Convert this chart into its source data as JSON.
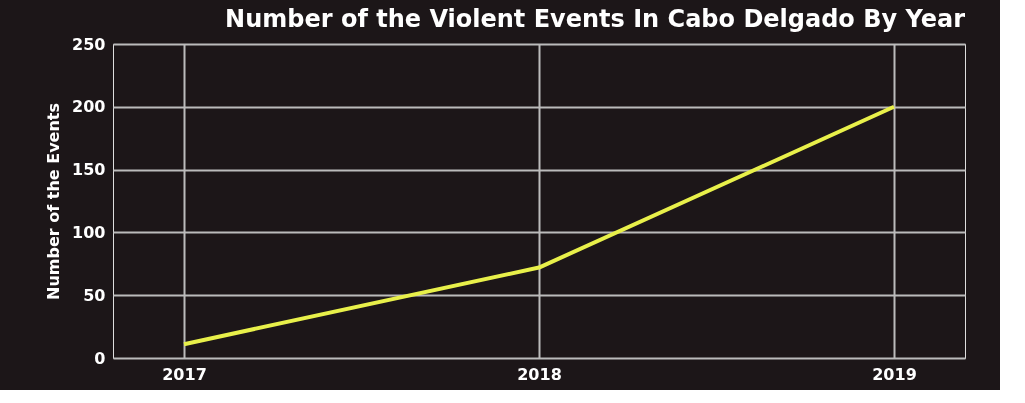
{
  "chart_data": {
    "type": "line",
    "title": "Number of the Violent Events In Cabo Delgado By Year",
    "ylabel": "Number of the Events",
    "x": [
      2017,
      2018,
      2019
    ],
    "series": [
      {
        "color": "#e8f04a",
        "values": [
          11,
          72,
          200
        ]
      }
    ],
    "xlim": [
      2016.8,
      2019.2
    ],
    "xticks": [
      2017,
      2018,
      2019
    ],
    "ylim": [
      0,
      250
    ],
    "yticks": [
      0,
      50,
      100,
      150,
      200,
      250
    ],
    "grid": true,
    "marker": "none",
    "line_style": "solid"
  }
}
